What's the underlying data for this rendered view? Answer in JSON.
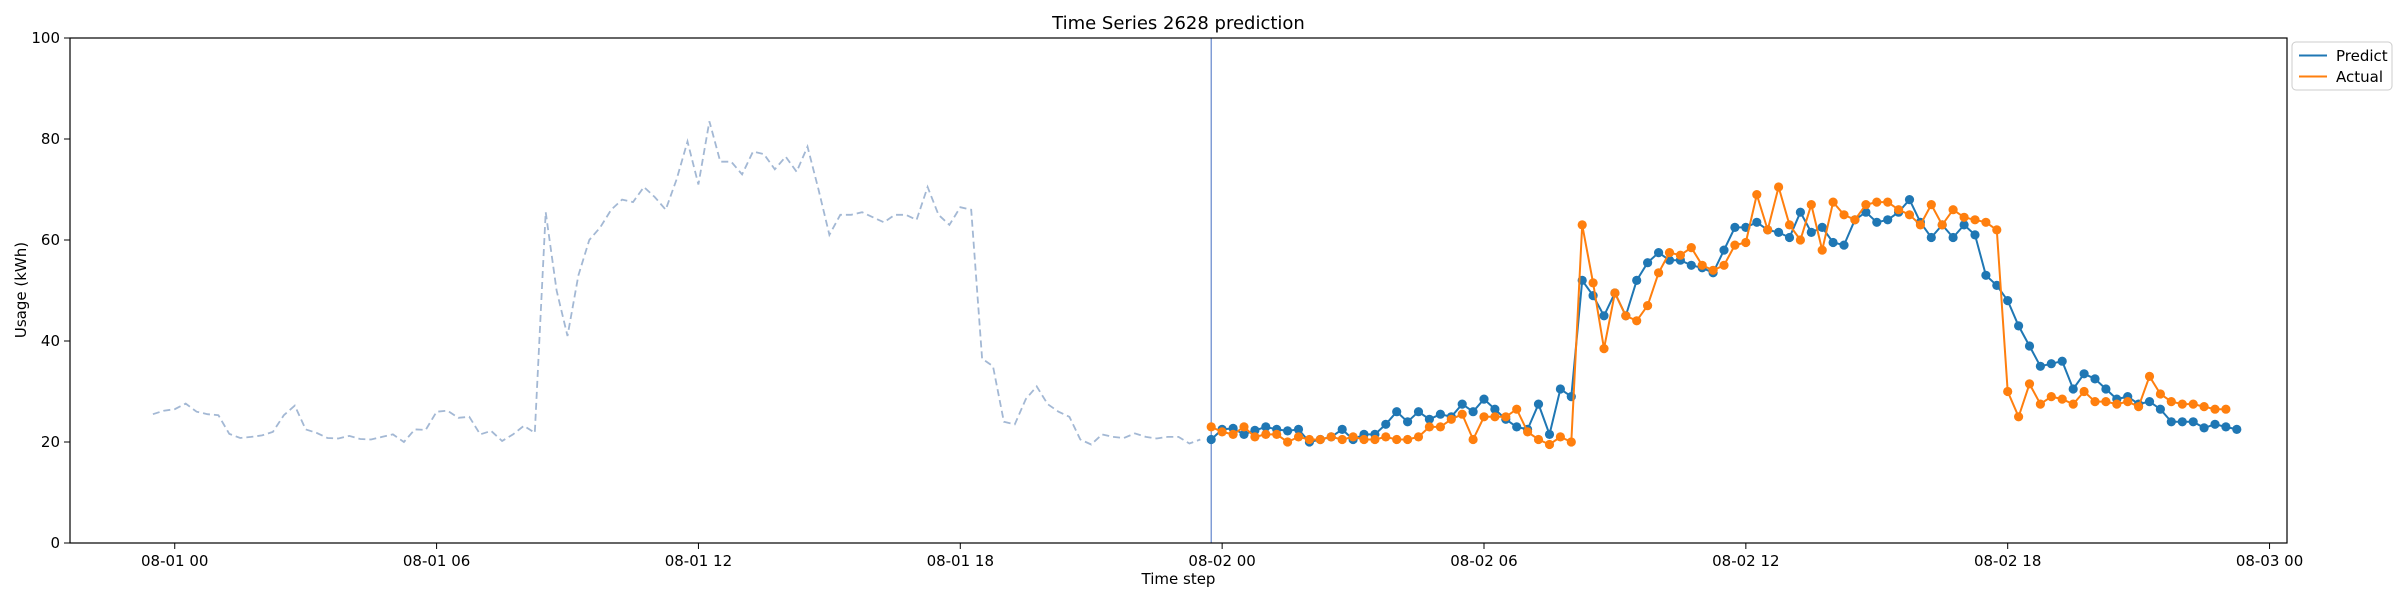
{
  "chart_data": {
    "type": "line",
    "title": "Time Series 2628 prediction",
    "xlabel": "Time step",
    "ylabel": "Usage (kWh)",
    "ylim": [
      0,
      100
    ],
    "yticks": [
      0,
      20,
      40,
      60,
      80,
      100
    ],
    "xlim": [
      "07-31 21:36",
      "08-03 00:24"
    ],
    "xticks": [
      {
        "t": "08-01 00:00",
        "label": "08-01 00"
      },
      {
        "t": "08-01 06:00",
        "label": "08-01 06"
      },
      {
        "t": "08-01 12:00",
        "label": "08-01 12"
      },
      {
        "t": "08-01 18:00",
        "label": "08-01 18"
      },
      {
        "t": "08-02 00:00",
        "label": "08-02 00"
      },
      {
        "t": "08-02 06:00",
        "label": "08-02 06"
      },
      {
        "t": "08-02 12:00",
        "label": "08-02 12"
      },
      {
        "t": "08-02 18:00",
        "label": "08-02 18"
      },
      {
        "t": "08-03 00:00",
        "label": "08-03 00"
      }
    ],
    "grid": false,
    "legend_position": "top-right (outside plot)",
    "forecast_start": "08-01 23:45",
    "history": {
      "start": "07-31 23:30",
      "interval_minutes": 15,
      "color": "#a3b8d4",
      "style": "dashed",
      "values": [
        25.5,
        26.2,
        26.5,
        27.6,
        26,
        25.5,
        25.3,
        21.6,
        20.8,
        21,
        21.3,
        22,
        25.3,
        27.2,
        22.5,
        21.8,
        20.8,
        20.7,
        21.2,
        20.6,
        20.5,
        21,
        21.5,
        20,
        22.5,
        22.4,
        26,
        26.2,
        24.8,
        25,
        21.5,
        22.2,
        20.2,
        21.5,
        23.2,
        21.8,
        65.5,
        50,
        41,
        53,
        60,
        62.5,
        66,
        68,
        67.5,
        70.5,
        68.5,
        66,
        72,
        79.5,
        71,
        83.5,
        75.5,
        75.5,
        73,
        77.5,
        77,
        74,
        76.5,
        73.5,
        78.5,
        70,
        61,
        65,
        65,
        65.5,
        64.5,
        63.5,
        65,
        65,
        64,
        70.5,
        65,
        63,
        66.5,
        66,
        36.5,
        35,
        24,
        23.5,
        28.5,
        31,
        27.5,
        26,
        25,
        20.5,
        19.5,
        21.5,
        21,
        20.8,
        21.7,
        21,
        20.7,
        21,
        21,
        19.7,
        20.5
      ]
    },
    "series": [
      {
        "name": "Predict",
        "color": "#1f77b4",
        "start": "08-01 23:45",
        "interval_minutes": 15,
        "values": [
          20.5,
          22.5,
          22.7,
          21.5,
          22.3,
          23,
          22.5,
          22.2,
          22.5,
          20,
          20.5,
          21,
          22.5,
          20.5,
          21.5,
          21.5,
          23.5,
          26,
          24,
          26,
          24.5,
          25.5,
          25,
          27.5,
          26,
          28.5,
          26.5,
          24.5,
          23,
          22.5,
          27.5,
          21.5,
          30.5,
          29,
          52,
          49,
          45,
          49.5,
          45,
          52,
          55.5,
          57.5,
          56,
          56,
          55,
          54.5,
          53.5,
          58,
          62.5,
          62.5,
          63.5,
          62,
          61.5,
          60.5,
          65.5,
          61.5,
          62.5,
          59.5,
          59,
          64,
          65.5,
          63.5,
          64,
          65.5,
          68,
          63.5,
          60.5,
          63,
          60.5,
          63,
          61,
          53,
          51,
          48,
          43,
          39,
          35,
          35.5,
          36,
          30.5,
          33.5,
          32.5,
          30.5,
          28.5,
          29,
          27.5,
          28,
          26.5,
          24,
          24,
          24,
          22.8,
          23.5,
          23,
          22.5
        ]
      },
      {
        "name": "Actual",
        "color": "#ff7f0e",
        "start": "08-01 23:45",
        "interval_minutes": 15,
        "values": [
          23,
          22,
          21.5,
          23,
          21,
          21.5,
          21.5,
          20,
          21,
          20.5,
          20.5,
          21,
          20.5,
          21,
          20.5,
          20.5,
          21,
          20.5,
          20.5,
          21,
          23,
          23,
          24.5,
          25.5,
          20.5,
          25,
          25,
          25,
          26.5,
          22,
          20.5,
          19.5,
          21,
          20,
          63,
          51.5,
          38.5,
          49.5,
          45,
          44,
          47,
          53.5,
          57.5,
          57,
          58.5,
          55,
          54,
          55,
          59,
          59.5,
          69,
          62,
          70.5,
          63,
          60,
          67,
          58,
          67.5,
          65,
          64,
          67,
          67.5,
          67.5,
          66,
          65,
          63,
          67,
          63,
          66,
          64.5,
          64,
          63.5,
          62,
          30,
          25,
          31.5,
          27.5,
          29,
          28.5,
          27.5,
          30,
          28,
          28,
          27.5,
          28,
          27,
          33,
          29.5,
          28,
          27.5,
          27.5,
          27,
          26.5,
          26.5
        ]
      }
    ]
  }
}
